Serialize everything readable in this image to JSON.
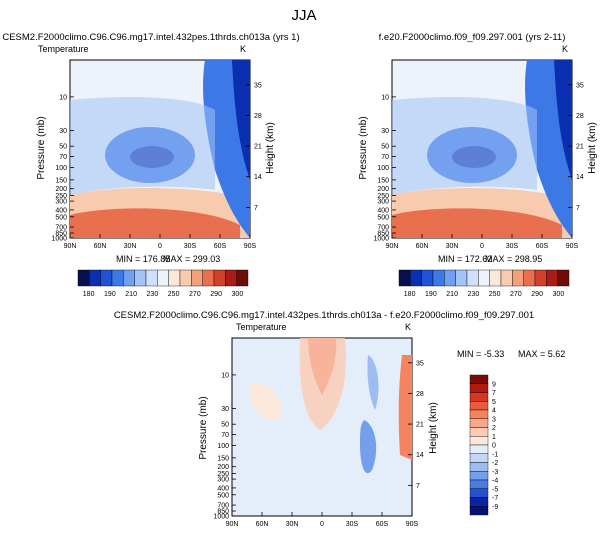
{
  "figure": {
    "title": "JJA"
  },
  "chart_data": [
    {
      "type": "heatmap",
      "title": "CESM2.F2000climo.C96.C96.mg17.intel.432pes.1thrds.ch013a (yrs 1)",
      "field_label": "Temperature",
      "units": "K",
      "xlabel": "",
      "ylabel": "Pressure (mb)",
      "y2label": "Height (km)",
      "x_ticks": [
        "90N",
        "60N",
        "30N",
        "0",
        "30S",
        "60S",
        "90S"
      ],
      "y_ticks": [
        "10",
        "30",
        "50",
        "70",
        "100",
        "150",
        "200",
        "250",
        "300",
        "400",
        "500",
        "700",
        "850",
        "1000"
      ],
      "y2_ticks": [
        "35",
        "28",
        "21",
        "14",
        "7"
      ],
      "min_label": "MIN = 176.85",
      "max_label": "MAX = 299.03",
      "colorbar_labels": [
        "180",
        "190",
        "210",
        "230",
        "250",
        "270",
        "290",
        "300"
      ],
      "colorbar_colors": [
        "#08104d",
        "#0a2fb0",
        "#1f52d6",
        "#3d79e6",
        "#6f9ff0",
        "#a2c3f5",
        "#cfe0fa",
        "#eef3fb",
        "#fbe8d9",
        "#f8cbae",
        "#f3a07d",
        "#e9704f",
        "#d2422b",
        "#a81d15",
        "#6e0c08"
      ]
    },
    {
      "type": "heatmap",
      "title": "f.e20.F2000climo.f09_f09.297.001 (yrs 2-11)",
      "field_label": "",
      "units": "K",
      "xlabel": "",
      "ylabel": "Pressure (mb)",
      "y2label": "Height (km)",
      "x_ticks": [
        "90N",
        "60N",
        "30N",
        "0",
        "30S",
        "60S",
        "90S"
      ],
      "y_ticks": [
        "10",
        "30",
        "50",
        "70",
        "100",
        "150",
        "200",
        "250",
        "300",
        "400",
        "500",
        "700",
        "850",
        "1000"
      ],
      "y2_ticks": [
        "35",
        "28",
        "21",
        "14",
        "7"
      ],
      "min_label": "MIN = 172.62",
      "max_label": "MAX = 298.95",
      "colorbar_labels": [
        "180",
        "190",
        "210",
        "230",
        "250",
        "270",
        "290",
        "300"
      ],
      "colorbar_colors": [
        "#08104d",
        "#0a2fb0",
        "#1f52d6",
        "#3d79e6",
        "#6f9ff0",
        "#a2c3f5",
        "#cfe0fa",
        "#eef3fb",
        "#fbe8d9",
        "#f8cbae",
        "#f3a07d",
        "#e9704f",
        "#d2422b",
        "#a81d15",
        "#6e0c08"
      ]
    },
    {
      "type": "heatmap",
      "title": "CESM2.F2000climo.C96.C96.mg17.intel.432pes.1thrds.ch013a - f.e20.F2000climo.f09_f09.297.001",
      "field_label": "Temperature",
      "units": "K",
      "xlabel": "",
      "ylabel": "Pressure (mb)",
      "y2label": "Height (km)",
      "x_ticks": [
        "90N",
        "60N",
        "30N",
        "0",
        "30S",
        "60S",
        "90S"
      ],
      "y_ticks": [
        "10",
        "30",
        "50",
        "70",
        "100",
        "150",
        "200",
        "250",
        "300",
        "400",
        "500",
        "700",
        "850",
        "1000"
      ],
      "y2_ticks": [
        "35",
        "28",
        "21",
        "14",
        "7"
      ],
      "min_label": "MIN = -5.33",
      "max_label": "MAX =   5.62",
      "colorbar_labels": [
        "9",
        "7",
        "5",
        "4",
        "3",
        "2",
        "1",
        "0",
        "-1",
        "-2",
        "-3",
        "-4",
        "-5",
        "-7",
        "-9"
      ],
      "colorbar_colors": [
        "#7a0c06",
        "#b4180e",
        "#d83522",
        "#ea5a3c",
        "#f4845f",
        "#f8a888",
        "#fbcbb2",
        "#fde9dc",
        "#e4eefb",
        "#c3d7f7",
        "#9dbdf2",
        "#739fec",
        "#4a7be3",
        "#2452cf",
        "#0b24a6",
        "#061270"
      ]
    }
  ]
}
